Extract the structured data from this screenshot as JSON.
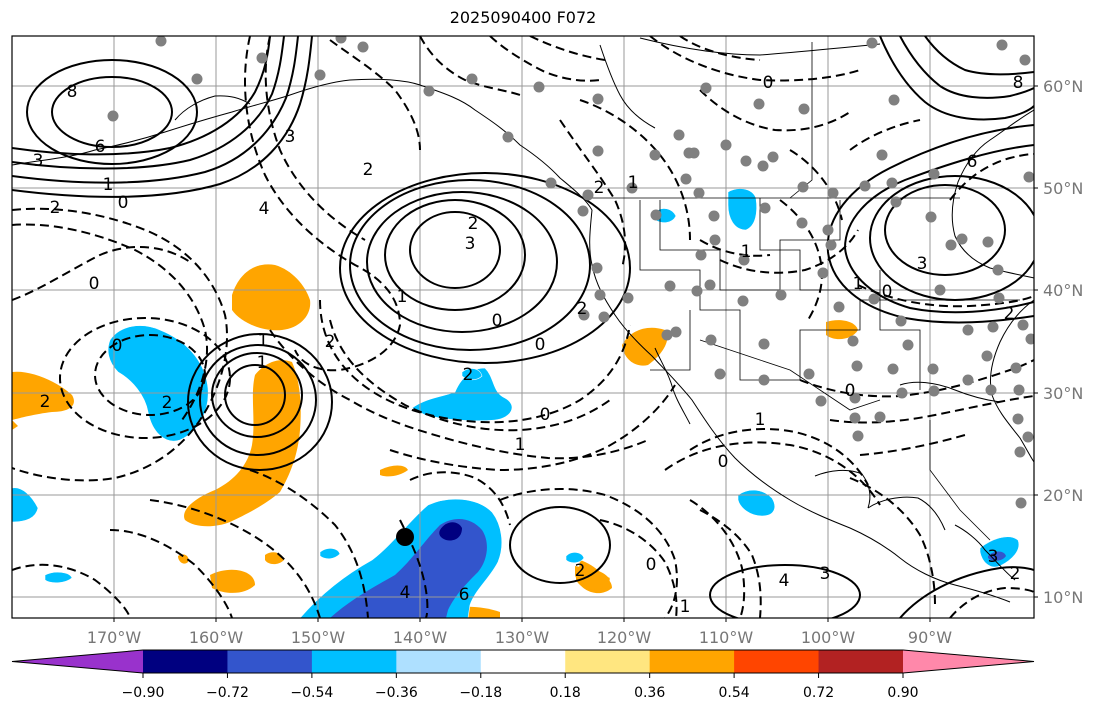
{
  "title": "2025090400 F072",
  "lon_labels": [
    "170°W",
    "160°W",
    "150°W",
    "140°W",
    "130°W",
    "120°W",
    "110°W",
    "100°W",
    "90°W"
  ],
  "lat_labels": [
    "60°N",
    "50°N",
    "40°N",
    "30°N",
    "20°N",
    "10°N"
  ],
  "colorbar": {
    "tick_labels": [
      "−0.90",
      "−0.72",
      "−0.54",
      "−0.36",
      "−0.18",
      "0.18",
      "0.36",
      "0.54",
      "0.72",
      "0.90"
    ],
    "colors": [
      "#9932cc",
      "#000080",
      "#3355cc",
      "#00bfff",
      "#aee0ff",
      "#ffffff",
      "#ffe680",
      "#ffa500",
      "#ff4500",
      "#b22222",
      "#ff88aa"
    ]
  },
  "contour_labels": [
    "8",
    "6",
    "3",
    "1",
    "0",
    "2",
    "3",
    "2",
    "4",
    "3",
    "2",
    "1",
    "0",
    "2",
    "0",
    "2",
    "1",
    "0",
    "1",
    "2",
    "2",
    "0",
    "2",
    "0",
    "1",
    "0",
    "1",
    "0",
    "2",
    "4",
    "3",
    "6",
    "0",
    "1",
    "1",
    "2",
    "1",
    "0"
  ],
  "colors": {
    "orange": "#ffa500",
    "cyan": "#00bfff",
    "blue": "#3355cc",
    "navy": "#000080",
    "dot": "#808080",
    "grid": "#999999"
  }
}
